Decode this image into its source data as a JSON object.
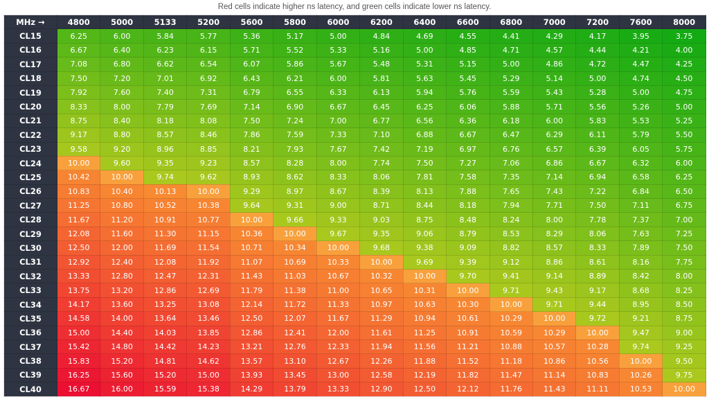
{
  "caption": "Red cells indicate higher ns latency, and green cells indicate lower ns latency.",
  "chart_data": {
    "type": "heatmap",
    "title": "Red cells indicate higher ns latency, and green cells indicate lower ns latency.",
    "corner_label": "MHz →",
    "columns": [
      "4800",
      "5000",
      "5133",
      "5200",
      "5600",
      "5800",
      "6000",
      "6200",
      "6400",
      "6600",
      "6800",
      "7000",
      "7200",
      "7600",
      "8000"
    ],
    "rows": [
      {
        "label": "CL15",
        "values": [
          "6.25",
          "6.00",
          "5.84",
          "5.77",
          "5.36",
          "5.17",
          "5.00",
          "4.84",
          "4.69",
          "4.55",
          "4.41",
          "4.29",
          "4.17",
          "3.95",
          "3.75"
        ]
      },
      {
        "label": "CL16",
        "values": [
          "6.67",
          "6.40",
          "6.23",
          "6.15",
          "5.71",
          "5.52",
          "5.33",
          "5.16",
          "5.00",
          "4.85",
          "4.71",
          "4.57",
          "4.44",
          "4.21",
          "4.00"
        ]
      },
      {
        "label": "CL17",
        "values": [
          "7.08",
          "6.80",
          "6.62",
          "6.54",
          "6.07",
          "5.86",
          "5.67",
          "5.48",
          "5.31",
          "5.15",
          "5.00",
          "4.86",
          "4.72",
          "4.47",
          "4.25"
        ]
      },
      {
        "label": "CL18",
        "values": [
          "7.50",
          "7.20",
          "7.01",
          "6.92",
          "6.43",
          "6.21",
          "6.00",
          "5.81",
          "5.63",
          "5.45",
          "5.29",
          "5.14",
          "5.00",
          "4.74",
          "4.50"
        ]
      },
      {
        "label": "CL19",
        "values": [
          "7.92",
          "7.60",
          "7.40",
          "7.31",
          "6.79",
          "6.55",
          "6.33",
          "6.13",
          "5.94",
          "5.76",
          "5.59",
          "5.43",
          "5.28",
          "5.00",
          "4.75"
        ]
      },
      {
        "label": "CL20",
        "values": [
          "8.33",
          "8.00",
          "7.79",
          "7.69",
          "7.14",
          "6.90",
          "6.67",
          "6.45",
          "6.25",
          "6.06",
          "5.88",
          "5.71",
          "5.56",
          "5.26",
          "5.00"
        ]
      },
      {
        "label": "CL21",
        "values": [
          "8.75",
          "8.40",
          "8.18",
          "8.08",
          "7.50",
          "7.24",
          "7.00",
          "6.77",
          "6.56",
          "6.36",
          "6.18",
          "6.00",
          "5.83",
          "5.53",
          "5.25"
        ]
      },
      {
        "label": "CL22",
        "values": [
          "9.17",
          "8.80",
          "8.57",
          "8.46",
          "7.86",
          "7.59",
          "7.33",
          "7.10",
          "6.88",
          "6.67",
          "6.47",
          "6.29",
          "6.11",
          "5.79",
          "5.50"
        ]
      },
      {
        "label": "CL23",
        "values": [
          "9.58",
          "9.20",
          "8.96",
          "8.85",
          "8.21",
          "7.93",
          "7.67",
          "7.42",
          "7.19",
          "6.97",
          "6.76",
          "6.57",
          "6.39",
          "6.05",
          "5.75"
        ]
      },
      {
        "label": "CL24",
        "values": [
          "10.00",
          "9.60",
          "9.35",
          "9.23",
          "8.57",
          "8.28",
          "8.00",
          "7.74",
          "7.50",
          "7.27",
          "7.06",
          "6.86",
          "6.67",
          "6.32",
          "6.00"
        ]
      },
      {
        "label": "CL25",
        "values": [
          "10.42",
          "10.00",
          "9.74",
          "9.62",
          "8.93",
          "8.62",
          "8.33",
          "8.06",
          "7.81",
          "7.58",
          "7.35",
          "7.14",
          "6.94",
          "6.58",
          "6.25"
        ]
      },
      {
        "label": "CL26",
        "values": [
          "10.83",
          "10.40",
          "10.13",
          "10.00",
          "9.29",
          "8.97",
          "8.67",
          "8.39",
          "8.13",
          "7.88",
          "7.65",
          "7.43",
          "7.22",
          "6.84",
          "6.50"
        ]
      },
      {
        "label": "CL27",
        "values": [
          "11.25",
          "10.80",
          "10.52",
          "10.38",
          "9.64",
          "9.31",
          "9.00",
          "8.71",
          "8.44",
          "8.18",
          "7.94",
          "7.71",
          "7.50",
          "7.11",
          "6.75"
        ]
      },
      {
        "label": "CL28",
        "values": [
          "11.67",
          "11.20",
          "10.91",
          "10.77",
          "10.00",
          "9.66",
          "9.33",
          "9.03",
          "8.75",
          "8.48",
          "8.24",
          "8.00",
          "7.78",
          "7.37",
          "7.00"
        ]
      },
      {
        "label": "CL29",
        "values": [
          "12.08",
          "11.60",
          "11.30",
          "11.15",
          "10.36",
          "10.00",
          "9.67",
          "9.35",
          "9.06",
          "8.79",
          "8.53",
          "8.29",
          "8.06",
          "7.63",
          "7.25"
        ]
      },
      {
        "label": "CL30",
        "values": [
          "12.50",
          "12.00",
          "11.69",
          "11.54",
          "10.71",
          "10.34",
          "10.00",
          "9.68",
          "9.38",
          "9.09",
          "8.82",
          "8.57",
          "8.33",
          "7.89",
          "7.50"
        ]
      },
      {
        "label": "CL31",
        "values": [
          "12.92",
          "12.40",
          "12.08",
          "11.92",
          "11.07",
          "10.69",
          "10.33",
          "10.00",
          "9.69",
          "9.39",
          "9.12",
          "8.86",
          "8.61",
          "8.16",
          "7.75"
        ]
      },
      {
        "label": "CL32",
        "values": [
          "13.33",
          "12.80",
          "12.47",
          "12.31",
          "11.43",
          "11.03",
          "10.67",
          "10.32",
          "10.00",
          "9.70",
          "9.41",
          "9.14",
          "8.89",
          "8.42",
          "8.00"
        ]
      },
      {
        "label": "CL33",
        "values": [
          "13.75",
          "13.20",
          "12.86",
          "12.69",
          "11.79",
          "11.38",
          "11.00",
          "10.65",
          "10.31",
          "10.00",
          "9.71",
          "9.43",
          "9.17",
          "8.68",
          "8.25"
        ]
      },
      {
        "label": "CL34",
        "values": [
          "14.17",
          "13.60",
          "13.25",
          "13.08",
          "12.14",
          "11.72",
          "11.33",
          "10.97",
          "10.63",
          "10.30",
          "10.00",
          "9.71",
          "9.44",
          "8.95",
          "8.50"
        ]
      },
      {
        "label": "CL35",
        "values": [
          "14.58",
          "14.00",
          "13.64",
          "13.46",
          "12.50",
          "12.07",
          "11.67",
          "11.29",
          "10.94",
          "10.61",
          "10.29",
          "10.00",
          "9.72",
          "9.21",
          "8.75"
        ]
      },
      {
        "label": "CL36",
        "values": [
          "15.00",
          "14.40",
          "14.03",
          "13.85",
          "12.86",
          "12.41",
          "12.00",
          "11.61",
          "11.25",
          "10.91",
          "10.59",
          "10.29",
          "10.00",
          "9.47",
          "9.00"
        ]
      },
      {
        "label": "CL37",
        "values": [
          "15.42",
          "14.80",
          "14.42",
          "14.23",
          "13.21",
          "12.76",
          "12.33",
          "11.94",
          "11.56",
          "11.21",
          "10.88",
          "10.57",
          "10.28",
          "9.74",
          "9.25"
        ]
      },
      {
        "label": "CL38",
        "values": [
          "15.83",
          "15.20",
          "14.81",
          "14.62",
          "13.57",
          "13.10",
          "12.67",
          "12.26",
          "11.88",
          "11.52",
          "11.18",
          "10.86",
          "10.56",
          "10.00",
          "9.50"
        ]
      },
      {
        "label": "CL39",
        "values": [
          "16.25",
          "15.60",
          "15.20",
          "15.00",
          "13.93",
          "13.45",
          "13.00",
          "12.58",
          "12.19",
          "11.82",
          "11.47",
          "11.14",
          "10.83",
          "10.26",
          "9.75"
        ]
      },
      {
        "label": "CL40",
        "values": [
          "16.67",
          "16.00",
          "15.59",
          "15.38",
          "14.29",
          "13.79",
          "13.33",
          "12.90",
          "12.50",
          "12.12",
          "11.76",
          "11.43",
          "11.11",
          "10.53",
          "10.00"
        ]
      }
    ],
    "colors": {
      "low": "#14aa14",
      "mid_low": "#aac81e",
      "equal_10": "#f8a03c",
      "mid_high": "#f88c32",
      "high": "#eb0f32",
      "header_bg": "#2e3441"
    }
  }
}
